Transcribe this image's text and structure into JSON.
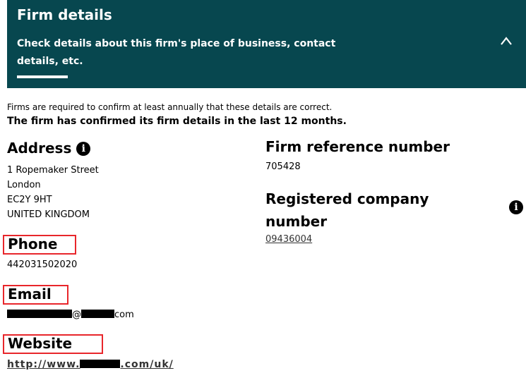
{
  "header": {
    "title": "Firm details",
    "subtitle": "Check details about this firm's place of business, contact details, etc.",
    "collapse_icon": "chevron-up-icon"
  },
  "notice": "Firms are required to confirm at least annually that these details are correct.",
  "confirmation": "The firm has confirmed its firm details in the last 12 months.",
  "address": {
    "label": "Address",
    "lines": [
      "1 Ropemaker Street",
      "London",
      "EC2Y 9HT",
      "UNITED KINGDOM"
    ]
  },
  "phone": {
    "label": "Phone",
    "value": "442031502020"
  },
  "email": {
    "label": "Email",
    "visible_at": "@",
    "visible_tail": "com"
  },
  "website": {
    "label": "Website",
    "prefix": "http://www.",
    "suffix": ".com/uk/"
  },
  "frn": {
    "label": "Firm reference number",
    "value": "705428"
  },
  "company": {
    "label": "Registered company number",
    "value": "09436004"
  },
  "colors": {
    "header_bg": "#07474f",
    "highlight": "#e8262b"
  }
}
